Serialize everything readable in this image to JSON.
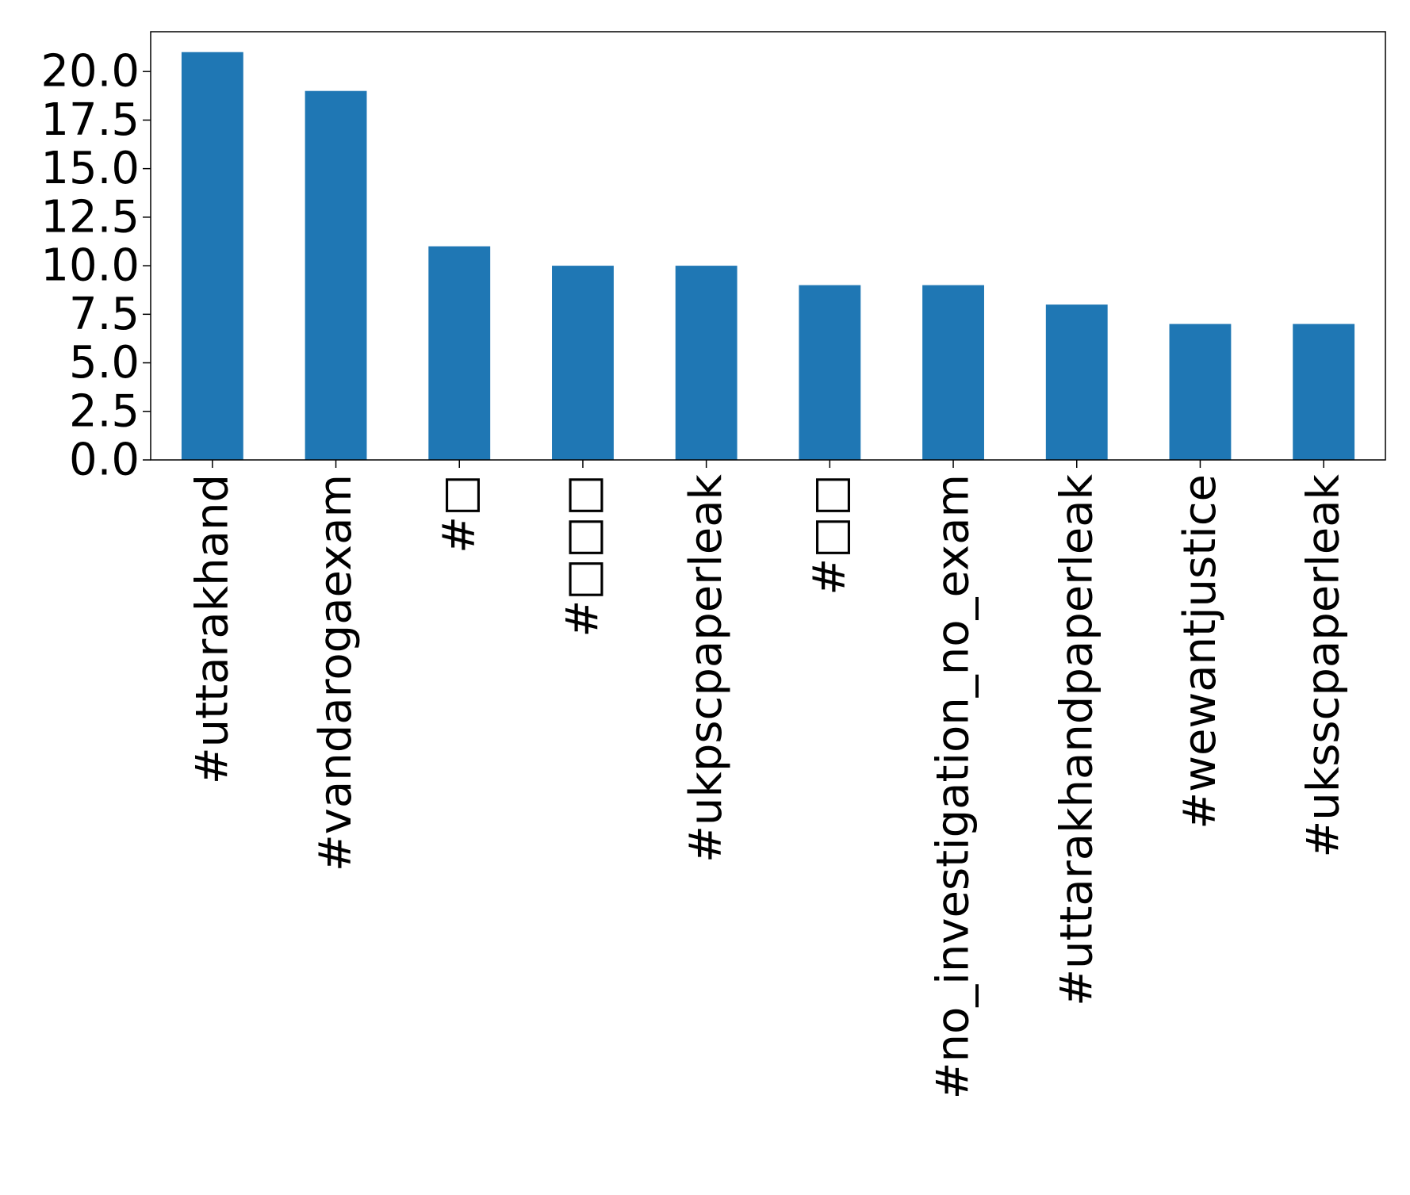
{
  "chart_data": {
    "type": "bar",
    "categories": [
      "#uttarakhand",
      "#vandarogaexam",
      "#□",
      "#□□□",
      "#ukpscpaperleak",
      "#□□",
      "#no_investigation_no_exam",
      "#uttarakhandpaperleak",
      "#wewantjustice",
      "#uksscpaperleak"
    ],
    "values": [
      21,
      19,
      11,
      10,
      10,
      9,
      9,
      8,
      7,
      7
    ],
    "ylim": [
      0,
      22.05
    ],
    "yticks": [
      "0.0",
      "2.5",
      "5.0",
      "7.5",
      "10.0",
      "12.5",
      "15.0",
      "17.5",
      "20.0"
    ],
    "bar_color": "#1f77b4",
    "grid": false,
    "legend": "none"
  }
}
